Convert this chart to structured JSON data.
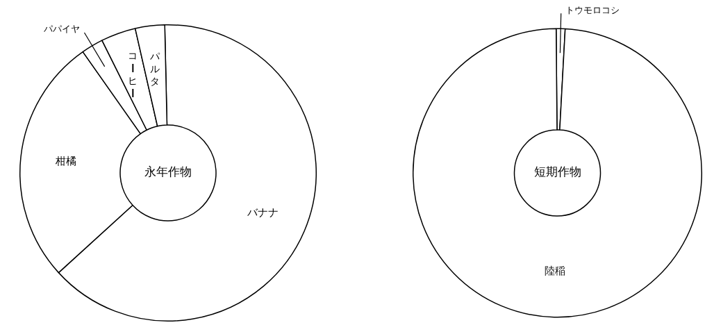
{
  "chart_data": [
    {
      "type": "donut",
      "title": "永年作物",
      "categories": [
        "バナナ",
        "柑橘",
        "パパイヤ",
        "コーヒー",
        "パルタ"
      ],
      "values": [
        63.6,
        27,
        2.4,
        3.8,
        3.2
      ],
      "colors": [
        "#ffffff",
        "#ffffff",
        "#ffffff",
        "#ffffff",
        "#ffffff"
      ]
    },
    {
      "type": "donut",
      "title": "短期作物",
      "categories": [
        "トウモロコシ",
        "陸稲"
      ],
      "values": [
        1,
        99
      ],
      "colors": [
        "#ffffff",
        "#ffffff"
      ]
    }
  ]
}
